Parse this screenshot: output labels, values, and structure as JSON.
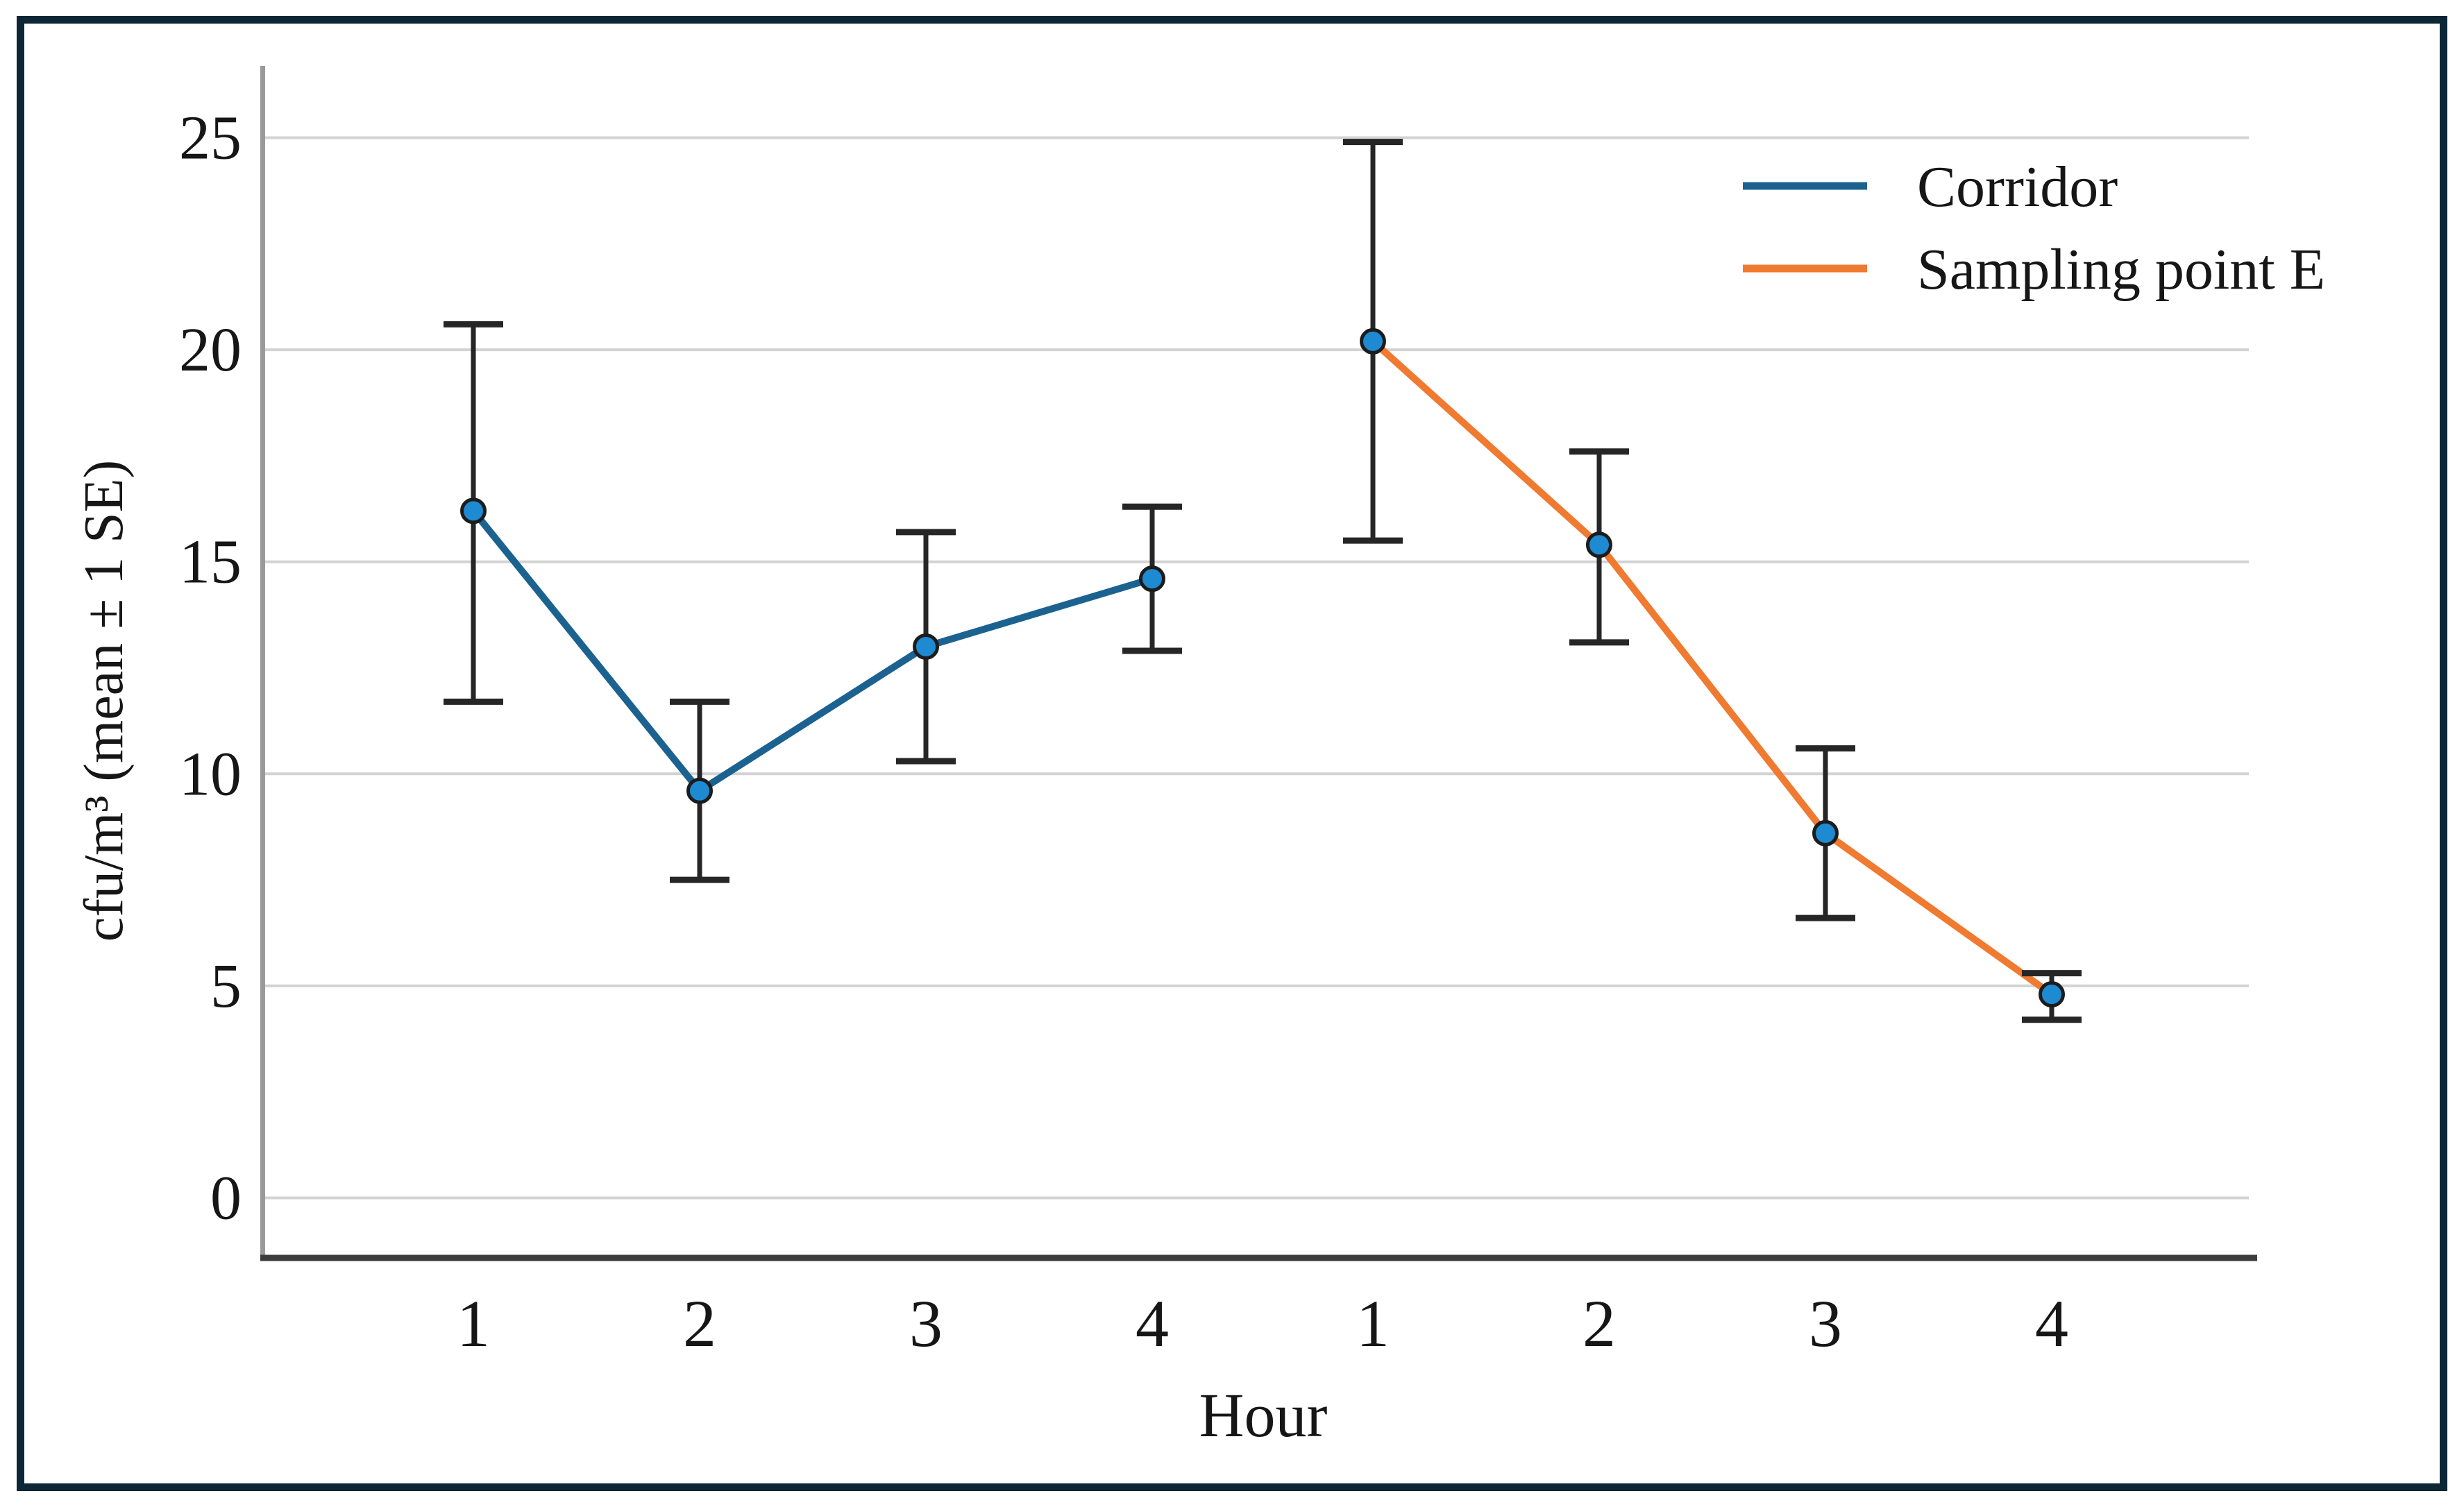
{
  "window": {
    "background": "#ffffff",
    "frame_color": "#0d2737"
  },
  "chart_data": {
    "type": "line",
    "title": "",
    "xlabel": "Hour",
    "ylabel": "cfu/m³ (mean ± 1 SE)",
    "y_axis": {
      "min": 0,
      "max": 25,
      "ticks": [
        0,
        5,
        10,
        15,
        20,
        25
      ]
    },
    "x_axis": {
      "tick_labels": [
        "1",
        "2",
        "3",
        "4",
        "1",
        "2",
        "3",
        "4"
      ]
    },
    "grid": "horizontal",
    "legend": {
      "position": "top-right",
      "entries": [
        "Corridor",
        "Sampling point E"
      ]
    },
    "series": [
      {
        "name": "Corridor",
        "color": "#1b6290",
        "hours": [
          "1",
          "2",
          "3",
          "4"
        ],
        "mean": [
          16.2,
          9.6,
          13.0,
          14.6
        ],
        "upper": [
          20.6,
          11.7,
          15.7,
          16.3
        ],
        "lower": [
          11.7,
          7.5,
          10.3,
          12.9
        ]
      },
      {
        "name": "Sampling point E",
        "color": "#ef7a30",
        "hours": [
          "1",
          "2",
          "3",
          "4"
        ],
        "mean": [
          20.2,
          15.4,
          8.6,
          4.8
        ],
        "upper": [
          24.9,
          17.6,
          10.6,
          5.3
        ],
        "lower": [
          15.5,
          13.1,
          6.6,
          4.2
        ]
      }
    ],
    "marker": {
      "shape": "circle",
      "fill": "#1e8ad2",
      "edge": "#1c1c1c"
    },
    "errorbar_color": "#262626",
    "gridline_color": "#d3d3d3",
    "left_spine_color": "#9a9a9a",
    "bottom_spine_color": "#3d3d3d"
  }
}
